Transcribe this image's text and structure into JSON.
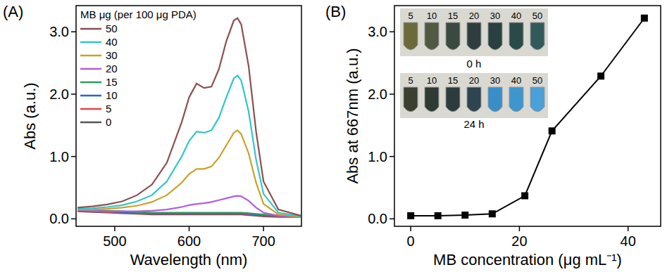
{
  "chart_data": [
    {
      "type": "line",
      "panel_label": "(A)",
      "x_label": "Wavelength (nm)",
      "y_label": "Abs (a.u.)",
      "legend_title": "MB μg (per 100 μg PDA)",
      "legend": "upper left",
      "grid": false,
      "xlim": [
        448,
        751
      ],
      "xticks": [
        500,
        600,
        700
      ],
      "ylim": [
        -0.12,
        3.42
      ],
      "yticks": [
        {
          "value": 0,
          "label": "0.0"
        },
        {
          "value": 1,
          "label": "1.0"
        },
        {
          "value": 2,
          "label": "2.0"
        },
        {
          "value": 3,
          "label": "3.0"
        }
      ],
      "x": [
        450,
        470,
        490,
        510,
        530,
        550,
        570,
        590,
        600,
        610,
        620,
        630,
        640,
        650,
        660,
        665,
        670,
        680,
        690,
        700,
        720,
        750
      ],
      "series": [
        {
          "name": "50",
          "color": "#8c4f4f",
          "values": [
            0.18,
            0.2,
            0.23,
            0.28,
            0.38,
            0.55,
            0.9,
            1.55,
            1.95,
            2.17,
            2.1,
            2.12,
            2.4,
            2.85,
            3.18,
            3.22,
            3.12,
            2.45,
            1.4,
            0.6,
            0.15,
            0.05
          ]
        },
        {
          "name": "40",
          "color": "#33c6c6",
          "values": [
            0.16,
            0.17,
            0.19,
            0.22,
            0.28,
            0.38,
            0.6,
            1.0,
            1.25,
            1.4,
            1.38,
            1.42,
            1.62,
            1.95,
            2.25,
            2.3,
            2.22,
            1.72,
            0.95,
            0.4,
            0.1,
            0.04
          ]
        },
        {
          "name": "30",
          "color": "#c9a227",
          "values": [
            0.15,
            0.15,
            0.16,
            0.18,
            0.21,
            0.27,
            0.38,
            0.58,
            0.72,
            0.8,
            0.8,
            0.84,
            0.98,
            1.18,
            1.38,
            1.42,
            1.36,
            1.05,
            0.58,
            0.24,
            0.07,
            0.03
          ]
        },
        {
          "name": "20",
          "color": "#b05fdc",
          "values": [
            0.14,
            0.13,
            0.12,
            0.12,
            0.12,
            0.13,
            0.15,
            0.19,
            0.22,
            0.24,
            0.25,
            0.27,
            0.3,
            0.33,
            0.36,
            0.37,
            0.36,
            0.29,
            0.18,
            0.1,
            0.05,
            0.03
          ]
        },
        {
          "name": "15",
          "color": "#2e9e5e",
          "values": [
            0.15,
            0.14,
            0.13,
            0.12,
            0.11,
            0.1,
            0.1,
            0.1,
            0.1,
            0.1,
            0.1,
            0.1,
            0.1,
            0.1,
            0.1,
            0.1,
            0.1,
            0.09,
            0.08,
            0.07,
            0.05,
            0.04
          ]
        },
        {
          "name": "10",
          "color": "#2a62d4",
          "values": [
            0.14,
            0.13,
            0.12,
            0.11,
            0.1,
            0.09,
            0.09,
            0.09,
            0.09,
            0.09,
            0.09,
            0.09,
            0.09,
            0.09,
            0.09,
            0.09,
            0.09,
            0.08,
            0.07,
            0.06,
            0.05,
            0.04
          ]
        },
        {
          "name": "5",
          "color": "#e04545",
          "values": [
            0.13,
            0.12,
            0.11,
            0.1,
            0.09,
            0.08,
            0.08,
            0.08,
            0.08,
            0.08,
            0.08,
            0.08,
            0.08,
            0.08,
            0.08,
            0.08,
            0.08,
            0.07,
            0.06,
            0.05,
            0.04,
            0.03
          ]
        },
        {
          "name": "0",
          "color": "#555555",
          "values": [
            0.12,
            0.11,
            0.1,
            0.09,
            0.08,
            0.07,
            0.07,
            0.07,
            0.07,
            0.07,
            0.07,
            0.07,
            0.07,
            0.07,
            0.07,
            0.07,
            0.07,
            0.06,
            0.05,
            0.04,
            0.03,
            0.03
          ]
        }
      ]
    },
    {
      "type": "line",
      "panel_label": "(B)",
      "x_label": "MB concentration (μg mL⁻¹)",
      "y_label": "Abs at 667nm (a.u.)",
      "grid": false,
      "marker": "square",
      "color": "#000000",
      "xlim": [
        -3,
        46
      ],
      "xticks": [
        0,
        20,
        40
      ],
      "ylim": [
        -0.12,
        3.42
      ],
      "yticks": [
        {
          "value": 0,
          "label": "0.0"
        },
        {
          "value": 1,
          "label": "1.0"
        },
        {
          "value": 2,
          "label": "2.0"
        },
        {
          "value": 3,
          "label": "3.0"
        }
      ],
      "x": [
        0,
        5,
        10,
        15,
        21,
        26,
        35,
        43
      ],
      "values": [
        0.05,
        0.05,
        0.06,
        0.08,
        0.37,
        1.41,
        2.29,
        3.22
      ],
      "inset": {
        "labels": [
          "5",
          "10",
          "15",
          "20",
          "30",
          "40",
          "50"
        ],
        "times": [
          "0 h",
          "24 h"
        ]
      }
    }
  ]
}
